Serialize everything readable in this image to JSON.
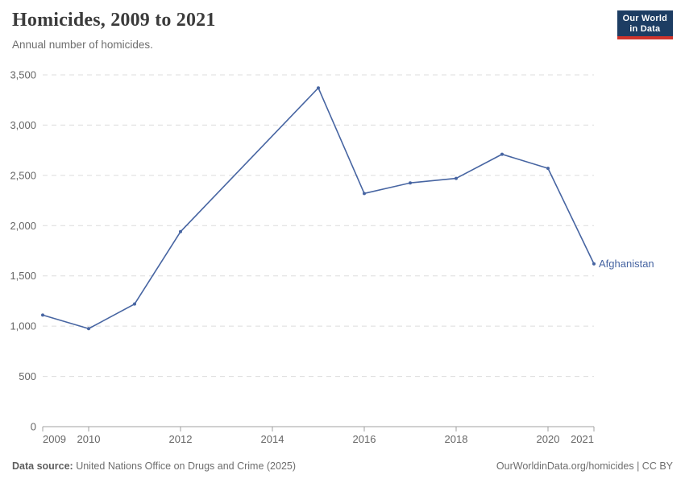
{
  "header": {
    "title": "Homicides, 2009 to 2021",
    "subtitle": "Annual number of homicides.",
    "logo": {
      "line1": "Our World",
      "line2": "in Data",
      "bg_color": "#1d3d63",
      "accent_color": "#d0342c"
    }
  },
  "chart_data": {
    "type": "line",
    "title": "Homicides, 2009 to 2021",
    "subtitle": "Annual number of homicides.",
    "x": {
      "min": 2009,
      "max": 2021,
      "ticks": [
        2009,
        2010,
        2012,
        2014,
        2016,
        2018,
        2020,
        2021
      ]
    },
    "y": {
      "min": 0,
      "max": 3500,
      "tick_interval": 500,
      "ticks": [
        0,
        500,
        1000,
        1500,
        2000,
        2500,
        3000,
        3500
      ]
    },
    "grid": "horizontal-dashed",
    "legend_position": "end-of-line",
    "series": [
      {
        "name": "Afghanistan",
        "color": "#4765a2",
        "missing_years": [
          2013,
          2014
        ],
        "points": [
          {
            "year": 2009,
            "value": 1110
          },
          {
            "year": 2010,
            "value": 975
          },
          {
            "year": 2011,
            "value": 1220
          },
          {
            "year": 2012,
            "value": 1940
          },
          {
            "year": 2015,
            "value": 3370
          },
          {
            "year": 2016,
            "value": 2320
          },
          {
            "year": 2017,
            "value": 2425
          },
          {
            "year": 2018,
            "value": 2470
          },
          {
            "year": 2019,
            "value": 2710
          },
          {
            "year": 2020,
            "value": 2570
          },
          {
            "year": 2021,
            "value": 1620
          }
        ]
      }
    ]
  },
  "footer": {
    "source_label": "Data source:",
    "source_text": " United Nations Office on Drugs and Crime (2025)",
    "attribution": "OurWorldinData.org/homicides | CC BY"
  },
  "colors": {
    "line": "#4765a2",
    "gridline": "#dcdcdc",
    "axis": "#a0a0a0",
    "tick_text": "#666666",
    "title_text": "#3b3b3b",
    "subtitle_text": "#6e6e6e",
    "logo_bg": "#1d3d63",
    "logo_accent": "#d0342c"
  }
}
